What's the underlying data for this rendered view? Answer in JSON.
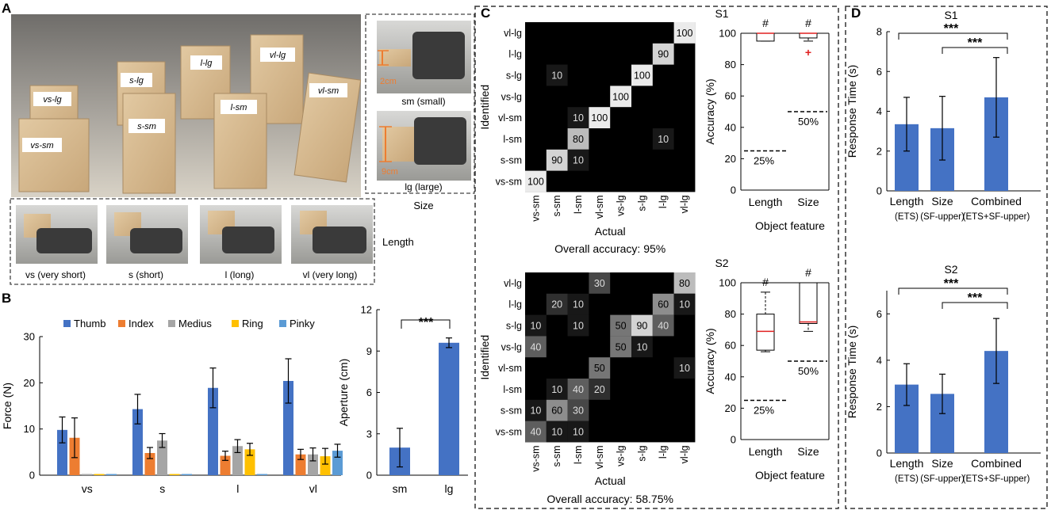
{
  "panel_letters": {
    "A": "A",
    "B": "B",
    "C": "C",
    "D": "D"
  },
  "panel_A": {
    "photo_labels": [
      "vs-lg",
      "s-lg",
      "l-lg",
      "vl-lg",
      "vl-sm",
      "l-sm",
      "s-sm",
      "vs-sm"
    ],
    "size_panel": {
      "sm_dim": "2cm",
      "sm_caption": "sm (small)",
      "lg_dim": "9cm",
      "lg_caption": "lg (large)",
      "title": "Size"
    },
    "length_panel": {
      "captions": [
        "vs (very short)",
        "s (short)",
        "l (long)",
        "vl (very long)"
      ],
      "title": "Length"
    }
  },
  "chart_data": [
    {
      "id": "force",
      "type": "bar",
      "title": "",
      "xlabel": "",
      "ylabel": "Force (N)",
      "ylim": [
        0,
        30
      ],
      "yticks": [
        0,
        10,
        20,
        30
      ],
      "categories": [
        "vs",
        "s",
        "l",
        "vl"
      ],
      "series": [
        {
          "name": "Thumb",
          "color": "#4472C4",
          "values": [
            9.8,
            14.3,
            18.9,
            20.4
          ],
          "errors": [
            2.8,
            3.2,
            4.3,
            4.8
          ]
        },
        {
          "name": "Index",
          "color": "#ED7D31",
          "values": [
            8.1,
            4.8,
            4.2,
            4.5
          ],
          "errors": [
            4.3,
            1.2,
            1.0,
            1.1
          ]
        },
        {
          "name": "Medius",
          "color": "#A5A5A5",
          "values": [
            0,
            7.5,
            6.3,
            4.5
          ],
          "errors": [
            0,
            1.5,
            1.4,
            1.4
          ]
        },
        {
          "name": "Ring",
          "color": "#FFC000",
          "values": [
            0,
            0,
            5.6,
            4.1
          ],
          "errors": [
            0,
            0,
            1.3,
            1.7
          ]
        },
        {
          "name": "Pinky",
          "color": "#5B9BD5",
          "values": [
            0,
            0,
            0,
            5.3
          ],
          "errors": [
            0,
            0,
            0,
            1.4
          ]
        }
      ]
    },
    {
      "id": "aperture",
      "type": "bar",
      "title": "",
      "ylabel": "Aperture (cm)",
      "ylim": [
        0,
        12
      ],
      "yticks": [
        0,
        3,
        6,
        9,
        12
      ],
      "categories": [
        "sm",
        "lg"
      ],
      "values": [
        2.0,
        9.6
      ],
      "errors": [
        1.4,
        0.35
      ],
      "color": "#4472C4",
      "significance": "***"
    },
    {
      "id": "cm_s1",
      "type": "heatmap",
      "ylabel": "Identified",
      "xlabel": "Actual",
      "caption": "Overall accuracy: 95%",
      "row_labels": [
        "vl-lg",
        "l-lg",
        "s-lg",
        "vs-lg",
        "vl-sm",
        "l-sm",
        "s-sm",
        "vs-sm"
      ],
      "col_labels": [
        "vs-sm",
        "s-sm",
        "l-sm",
        "vl-sm",
        "vs-lg",
        "s-lg",
        "l-lg",
        "vl-lg"
      ],
      "values": [
        [
          0,
          0,
          0,
          0,
          0,
          0,
          0,
          100
        ],
        [
          0,
          0,
          0,
          0,
          0,
          0,
          90,
          0
        ],
        [
          0,
          10,
          0,
          0,
          0,
          100,
          0,
          0
        ],
        [
          0,
          0,
          0,
          0,
          100,
          0,
          0,
          0
        ],
        [
          0,
          0,
          10,
          100,
          0,
          0,
          0,
          0
        ],
        [
          0,
          0,
          80,
          0,
          0,
          0,
          10,
          0
        ],
        [
          0,
          90,
          10,
          0,
          0,
          0,
          0,
          0
        ],
        [
          100,
          0,
          0,
          0,
          0,
          0,
          0,
          0
        ]
      ]
    },
    {
      "id": "cm_s2",
      "type": "heatmap",
      "ylabel": "Identified",
      "xlabel": "Actual",
      "caption": "Overall accuracy: 58.75%",
      "row_labels": [
        "vl-lg",
        "l-lg",
        "s-lg",
        "vs-lg",
        "vl-sm",
        "l-sm",
        "s-sm",
        "vs-sm"
      ],
      "col_labels": [
        "vs-sm",
        "s-sm",
        "l-sm",
        "vl-sm",
        "vs-lg",
        "s-lg",
        "l-lg",
        "vl-lg"
      ],
      "values": [
        [
          0,
          0,
          0,
          30,
          0,
          0,
          0,
          80
        ],
        [
          0,
          20,
          10,
          0,
          0,
          0,
          60,
          10
        ],
        [
          10,
          0,
          10,
          0,
          50,
          90,
          40,
          0
        ],
        [
          40,
          0,
          0,
          0,
          50,
          10,
          0,
          0
        ],
        [
          0,
          0,
          0,
          50,
          0,
          0,
          0,
          10
        ],
        [
          0,
          10,
          40,
          20,
          0,
          0,
          0,
          0
        ],
        [
          10,
          60,
          30,
          0,
          0,
          0,
          0,
          0
        ],
        [
          40,
          10,
          10,
          0,
          0,
          0,
          0,
          0
        ]
      ]
    },
    {
      "id": "box_s1",
      "type": "box",
      "title": "S1",
      "ylabel": "Accuracy (%)",
      "xlabel": "Object feature",
      "ylim": [
        0,
        100
      ],
      "yticks": [
        0,
        20,
        40,
        60,
        80,
        100
      ],
      "categories": [
        "Length",
        "Size"
      ],
      "boxes": [
        {
          "min": 95,
          "q1": 95,
          "median": 100,
          "q3": 100,
          "max": 100,
          "outliers": []
        },
        {
          "min": 95,
          "q1": 97,
          "median": 100,
          "q3": 100,
          "max": 100,
          "outliers": [
            88
          ]
        }
      ],
      "chance": [
        "25%",
        "50%"
      ],
      "chance_values": [
        25,
        50
      ],
      "marks": [
        "#",
        "#"
      ]
    },
    {
      "id": "box_s2",
      "type": "box",
      "title": "S2",
      "ylabel": "Accuracy (%)",
      "xlabel": "Object feature",
      "ylim": [
        0,
        100
      ],
      "yticks": [
        0,
        20,
        40,
        60,
        80,
        100
      ],
      "categories": [
        "Length",
        "Size"
      ],
      "boxes": [
        {
          "min": 56,
          "q1": 57,
          "median": 69,
          "q3": 80,
          "max": 94,
          "outliers": []
        },
        {
          "min": 69,
          "q1": 74,
          "median": 75,
          "q3": 100,
          "max": 100,
          "outliers": []
        }
      ],
      "chance": [
        "25%",
        "50%"
      ],
      "chance_values": [
        25,
        50
      ],
      "marks": [
        "#",
        "#"
      ]
    },
    {
      "id": "rt_s1",
      "type": "bar",
      "title": "S1",
      "ylabel": "Response Time (s)",
      "ylim": [
        0,
        8
      ],
      "yticks": [
        0,
        2,
        4,
        6,
        8
      ],
      "categories": [
        "Length",
        "Size",
        "Combined"
      ],
      "sublabels": [
        "(ETS)",
        "(SF-upper)",
        "(ETS+SF-upper)"
      ],
      "values": [
        3.35,
        3.15,
        4.7
      ],
      "errors": [
        1.35,
        1.6,
        2.0
      ],
      "color": "#4472C4",
      "significance": [
        "***",
        "***"
      ]
    },
    {
      "id": "rt_s2",
      "type": "bar",
      "title": "S2",
      "ylabel": "Response Time (s)",
      "ylim": [
        0,
        7
      ],
      "yticks": [
        0,
        2,
        4,
        6
      ],
      "categories": [
        "Length",
        "Size",
        "Combined"
      ],
      "sublabels": [
        "(ETS)",
        "(SF-upper)",
        "(ETS+SF-upper)"
      ],
      "values": [
        2.95,
        2.55,
        4.4
      ],
      "errors": [
        0.9,
        0.85,
        1.4
      ],
      "color": "#4472C4",
      "significance": [
        "***",
        "***"
      ]
    }
  ]
}
